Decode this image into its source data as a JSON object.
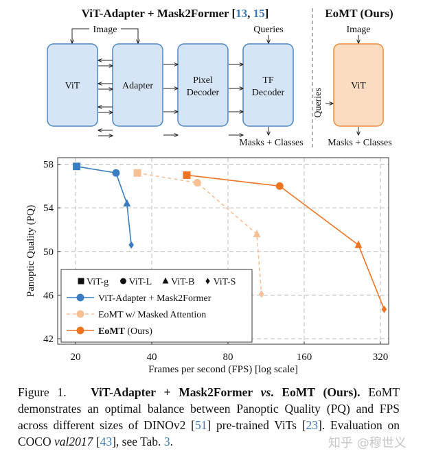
{
  "diagram": {
    "left_title": "ViT-Adapter + Mask2Former [",
    "left_title_refs": [
      "13",
      "15"
    ],
    "right_title": "EoMT (Ours)",
    "image_label": "Image",
    "queries_label": "Queries",
    "output_label": "Masks + Classes",
    "blocks": [
      "ViT",
      "Adapter",
      "Pixel Decoder",
      "TF Decoder"
    ],
    "eomt_block": "ViT",
    "colors": {
      "block_fill": "#d6e5f5",
      "block_stroke": "#4a86c5",
      "eomt_fill": "#fbdcc0",
      "eomt_stroke": "#f08a3c"
    }
  },
  "chart_data": {
    "type": "line",
    "xlabel": "Frames per second (FPS) [log scale]",
    "ylabel": "Panoptic Quality (PQ)",
    "x_scale": "log2",
    "xlim": [
      17,
      345
    ],
    "ylim": [
      41.5,
      58.6
    ],
    "xticks": [
      20,
      40,
      80,
      160,
      320
    ],
    "yticks": [
      42,
      46,
      50,
      54,
      58
    ],
    "grid": true,
    "legend_placement": "bottom-left",
    "marker_legend": [
      {
        "marker": "square",
        "label": "ViT-g"
      },
      {
        "marker": "circle",
        "label": "ViT-L"
      },
      {
        "marker": "triangle",
        "label": "ViT-B"
      },
      {
        "marker": "diamond",
        "label": "ViT-S"
      }
    ],
    "series": [
      {
        "name": "ViT-Adapter + Mask2Former",
        "color": "#3a7dc0",
        "dashed": false,
        "points": [
          {
            "model": "ViT-g",
            "fps": 20.2,
            "pq": 57.8
          },
          {
            "model": "ViT-L",
            "fps": 28.9,
            "pq": 57.2
          },
          {
            "model": "ViT-B",
            "fps": 31.9,
            "pq": 54.4
          },
          {
            "model": "ViT-S",
            "fps": 33.2,
            "pq": 50.6
          }
        ]
      },
      {
        "name": "EoMT w/ Masked Attention",
        "color": "#f7bf94",
        "dashed": true,
        "points": [
          {
            "model": "ViT-g",
            "fps": 35.1,
            "pq": 57.2
          },
          {
            "model": "ViT-L",
            "fps": 60.5,
            "pq": 56.3
          },
          {
            "model": "ViT-B",
            "fps": 104,
            "pq": 51.6
          },
          {
            "model": "ViT-S",
            "fps": 108.5,
            "pq": 46.1
          }
        ]
      },
      {
        "name": "EoMT",
        "name_suffix": "(Ours)",
        "color": "#ee7422",
        "dashed": false,
        "points": [
          {
            "model": "ViT-g",
            "fps": 55,
            "pq": 57.0
          },
          {
            "model": "ViT-L",
            "fps": 128,
            "pq": 56.0
          },
          {
            "model": "ViT-B",
            "fps": 262,
            "pq": 50.6
          },
          {
            "model": "ViT-S",
            "fps": 331,
            "pq": 44.7
          }
        ]
      }
    ]
  },
  "caption": {
    "label": "Figure 1.",
    "title": "ViT-Adapter + Mask2Former ",
    "title_vs": "vs",
    "title_end": ". EoMT (Ours).",
    "text1": "EoMT demonstrates an optimal balance between Panoptic Quality (PQ) and FPS across different sizes of DINOv2 [",
    "ref1": "51",
    "text2": "] pre-trained ViTs [",
    "ref2": "23",
    "text3": "]. Evaluation on COCO ",
    "dataset": "val2017",
    "text4": " [",
    "ref3": "43",
    "text5": "], see Tab. ",
    "ref4": "3",
    "text6": "."
  },
  "watermark": "知乎 @穆世义"
}
